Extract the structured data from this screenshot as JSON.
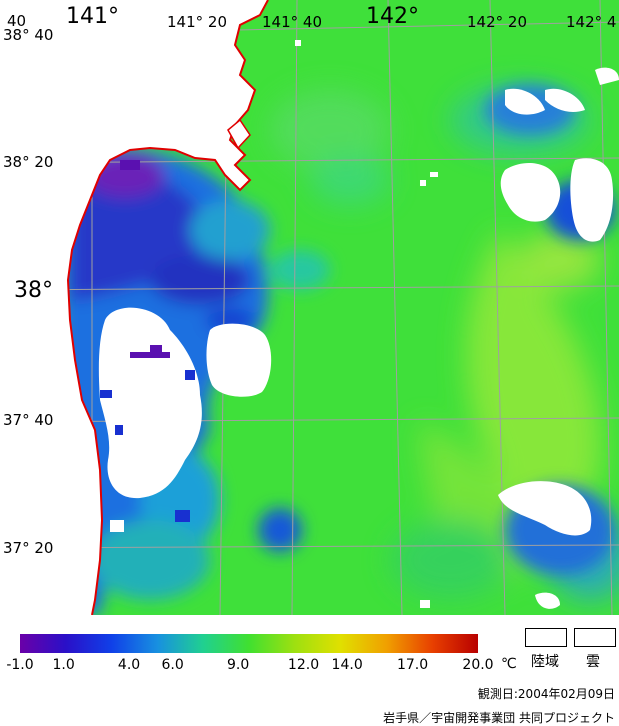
{
  "map": {
    "lon_labels": [
      {
        "text": "141°",
        "size": "big"
      },
      {
        "text": "141° 20",
        "size": "small"
      },
      {
        "text": "141° 40",
        "size": "small"
      },
      {
        "text": "142°",
        "size": "big"
      },
      {
        "text": "142° 20",
        "size": "small"
      },
      {
        "text": "142° 4",
        "size": "small"
      }
    ],
    "lat_labels": [
      {
        "text": "38° 40",
        "size": "small"
      },
      {
        "text": "38° 20",
        "size": "small"
      },
      {
        "text": "38°",
        "size": "big"
      },
      {
        "text": "37° 40",
        "size": "small"
      },
      {
        "text": "37° 20",
        "size": "small"
      }
    ],
    "corner_label": "40",
    "colors": {
      "land": "#ffffff",
      "cloud": "#ffffff",
      "coastline": "#e00000",
      "grid": "#a0a0a0",
      "sea_base": "#3fe03a"
    }
  },
  "colorbar": {
    "unit": "℃",
    "ticks": [
      "-1.0",
      "1.0",
      "4.0",
      "6.0",
      "9.0",
      "12.0",
      "14.0",
      "17.0",
      "20.0"
    ],
    "range": [
      -1.0,
      20.0
    ],
    "colors": [
      "#6a00a8",
      "#2a10c8",
      "#1040e8",
      "#1890e0",
      "#20d090",
      "#40e030",
      "#9ee010",
      "#e0e000",
      "#f0a000",
      "#e84000",
      "#b80000"
    ]
  },
  "legend": {
    "land_label": "陸域",
    "cloud_label": "雲"
  },
  "observation_date": "観測日:2004年02月09日",
  "credit": "岩手県／宇宙開発事業団 共同プロジェクト"
}
